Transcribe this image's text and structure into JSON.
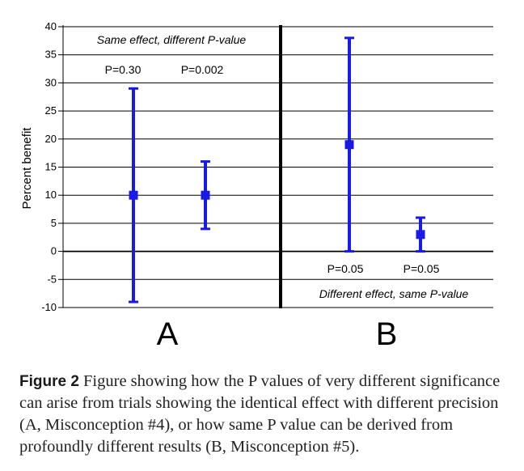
{
  "chart_data": {
    "type": "errorbar",
    "ylabel": "Percent benefit",
    "ylim": [
      -10,
      40
    ],
    "yticks": [
      "40",
      "35",
      "30",
      "25",
      "20",
      "15",
      "10",
      "5",
      "0",
      "-5",
      "-10"
    ],
    "ytick_values": [
      40,
      35,
      30,
      25,
      20,
      15,
      10,
      5,
      0,
      -5,
      -10
    ],
    "grid": true,
    "color": "#1a1ae6",
    "panels": [
      {
        "letter": "A",
        "annotation": "Same effect, different P-value",
        "points": [
          {
            "label": "P=0.30",
            "estimate": 10,
            "lower": -9,
            "upper": 29
          },
          {
            "label": "P=0.002",
            "estimate": 10,
            "lower": 4,
            "upper": 16
          }
        ]
      },
      {
        "letter": "B",
        "annotation": "Different effect, same P-value",
        "points": [
          {
            "label": "P=0.05",
            "estimate": 19,
            "lower": 0,
            "upper": 38
          },
          {
            "label": "P=0.05",
            "estimate": 3,
            "lower": 0,
            "upper": 6
          }
        ]
      }
    ]
  },
  "caption": {
    "label": "Figure 2",
    "text": " Figure showing how the P values of very different significance can arise from trials showing the identical effect with different precision (A, Misconception #4), or how same P value can be derived from profoundly different results (B, Misconception #5)."
  }
}
